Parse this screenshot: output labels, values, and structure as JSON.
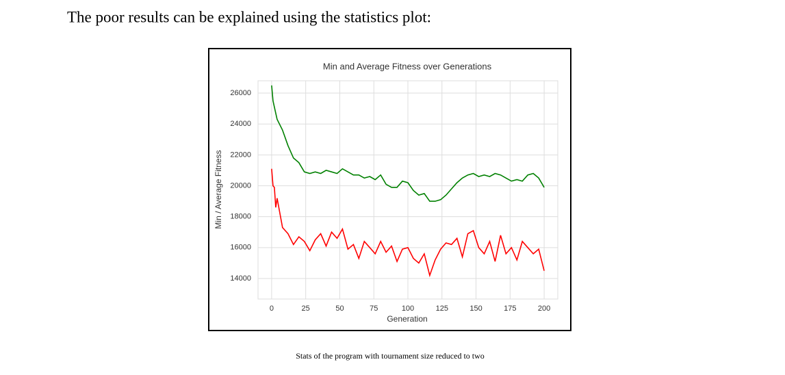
{
  "paragraph": "The poor results can be explained using the statistics plot:",
  "chart_data": {
    "type": "line",
    "title": "Min and Average Fitness over Generations",
    "xlabel": "Generation",
    "ylabel": "Min / Average Fitness",
    "x": [
      0,
      1,
      2,
      3,
      4,
      8,
      12,
      16,
      20,
      24,
      28,
      32,
      36,
      40,
      44,
      48,
      52,
      56,
      60,
      64,
      68,
      72,
      76,
      80,
      84,
      88,
      92,
      96,
      100,
      104,
      108,
      112,
      116,
      120,
      124,
      128,
      132,
      136,
      140,
      144,
      148,
      152,
      156,
      160,
      164,
      168,
      172,
      176,
      180,
      184,
      188,
      192,
      196,
      200
    ],
    "series": [
      {
        "color": "#008000",
        "values": [
          26500,
          25500,
          25100,
          24700,
          24300,
          23600,
          22600,
          21800,
          21500,
          20900,
          20800,
          20900,
          20800,
          21000,
          20900,
          20800,
          21100,
          20900,
          20700,
          20700,
          20500,
          20600,
          20400,
          20700,
          20100,
          19900,
          19900,
          20300,
          20200,
          19700,
          19400,
          19500,
          19000,
          19000,
          19100,
          19400,
          19800,
          20200,
          20500,
          20700,
          20800,
          20600,
          20700,
          20600,
          20800,
          20700,
          20500,
          20300,
          20400,
          20300,
          20700,
          20800,
          20500,
          19900
        ]
      },
      {
        "color": "#ff0000",
        "values": [
          21100,
          20000,
          19900,
          18600,
          19200,
          17300,
          16900,
          16200,
          16700,
          16400,
          15800,
          16500,
          16900,
          16100,
          17000,
          16600,
          17200,
          15900,
          16200,
          15300,
          16400,
          16000,
          15600,
          16400,
          15700,
          16100,
          15100,
          15900,
          16000,
          15300,
          15000,
          15600,
          14200,
          15200,
          15900,
          16300,
          16200,
          16600,
          15400,
          16900,
          17100,
          16000,
          15600,
          16400,
          15100,
          16800,
          15600,
          16000,
          15200,
          16400,
          16000,
          15600,
          15900,
          14500
        ]
      }
    ],
    "xlim": [
      -10,
      210
    ],
    "ylim": [
      12670,
      26800
    ],
    "xticks": [
      0,
      25,
      50,
      75,
      100,
      125,
      150,
      175,
      200
    ],
    "yticks": [
      14000,
      16000,
      18000,
      20000,
      22000,
      24000,
      26000
    ],
    "grid": true
  },
  "caption": "Stats of the program with tournament size reduced to two"
}
